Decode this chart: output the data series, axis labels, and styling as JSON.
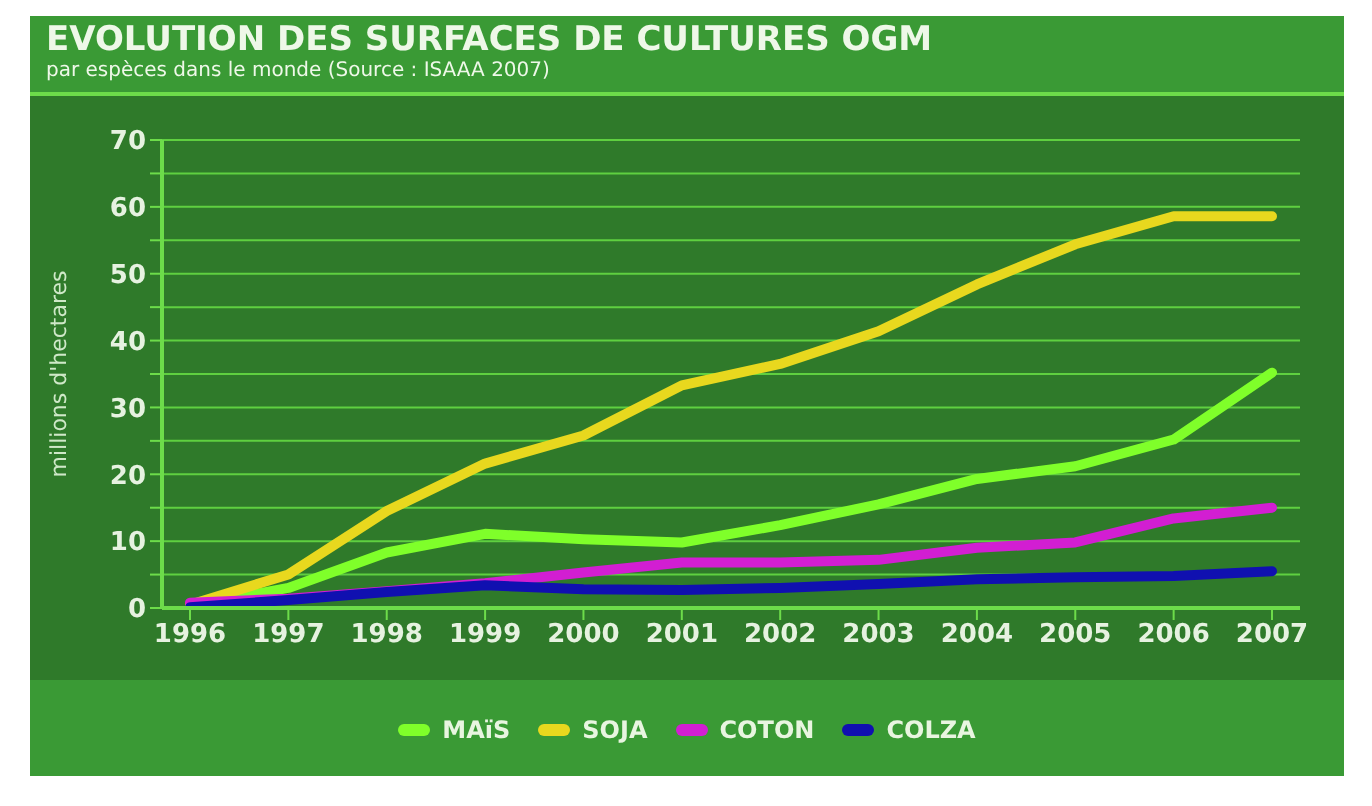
{
  "chart_data": {
    "type": "line",
    "title": "EVOLUTION DES SURFACES DE CULTURES OGM",
    "subtitle": "par espèces dans le monde (Source : ISAAA 2007)",
    "ylabel": "millions d'hectares",
    "categories": [
      "1996",
      "1997",
      "1998",
      "1999",
      "2000",
      "2001",
      "2002",
      "2003",
      "2004",
      "2005",
      "2006",
      "2007"
    ],
    "series": [
      {
        "name": "MAïS",
        "color": "#7fff2a",
        "values": [
          0.3,
          3,
          8.3,
          11.1,
          10.3,
          9.8,
          12.4,
          15.5,
          19.3,
          21.2,
          25.2,
          35.2
        ]
      },
      {
        "name": "SOJA",
        "color": "#e8d81e",
        "values": [
          0.5,
          5,
          14.5,
          21.6,
          25.8,
          33.3,
          36.5,
          41.4,
          48.4,
          54.4,
          58.6,
          58.6
        ]
      },
      {
        "name": "COTON",
        "color": "#d21ed2",
        "values": [
          0.8,
          1.4,
          2.5,
          3.7,
          5.3,
          6.8,
          6.8,
          7.2,
          9,
          9.8,
          13.4,
          15
        ]
      },
      {
        "name": "COLZA",
        "color": "#1010b0",
        "values": [
          0.1,
          1.2,
          2.4,
          3.4,
          2.8,
          2.7,
          3,
          3.6,
          4.3,
          4.6,
          4.8,
          5.5
        ]
      }
    ],
    "ylim": [
      0,
      70
    ],
    "yticks": [
      0,
      {
        "value": 5,
        "label": null
      },
      10,
      {
        "value": 15,
        "label": null
      },
      20,
      {
        "value": 25,
        "label": null
      },
      30,
      {
        "value": 35,
        "label": null
      },
      40,
      {
        "value": 45,
        "label": null
      },
      50,
      {
        "value": 55,
        "label": null
      },
      60,
      {
        "value": 65,
        "label": null
      },
      70
    ],
    "grid": "y",
    "legend": "bottom",
    "marker": "none",
    "line_style": "solid"
  }
}
